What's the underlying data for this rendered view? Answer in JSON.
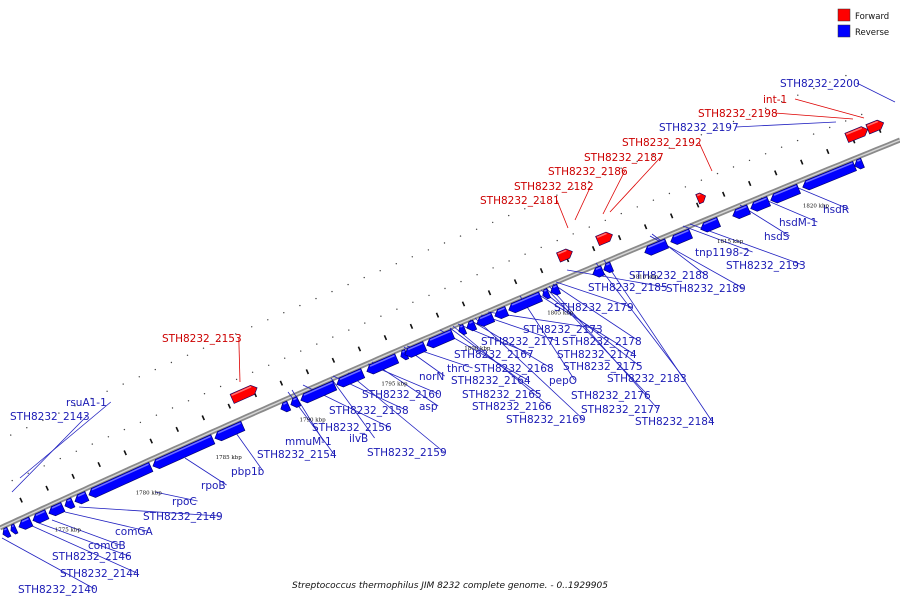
{
  "caption": "Streptococcus thermophilus JIM 8232 complete genome. - 0..1929905",
  "legend": [
    {
      "label": "Forward",
      "color": "#ff0000"
    },
    {
      "label": "Reverse",
      "color": "#0000ff"
    }
  ],
  "colors": {
    "forward": "#ff0000",
    "reverse": "#0000ff",
    "label_forward": "#cc0000",
    "label_reverse": "#1a1ab4",
    "backbone": "#888888"
  },
  "kbp_ticks": [
    "1775 kbp",
    "1780 kbp",
    "1785 kbp",
    "1790 kbp",
    "1795 kbp",
    "1800 kbp",
    "1805 kbp",
    "1810 kbp",
    "1815 kbp",
    "1820 kbp"
  ],
  "genes_forward": [
    "STH8232_2153",
    "STH8232_2181",
    "STH8232_2182",
    "STH8232_2186",
    "STH8232_2187",
    "STH8232_2192",
    "STH8232_2198",
    "int-1"
  ],
  "genes_reverse": [
    "STH8232_2140",
    "STH8232_2143",
    "rsuA1-1",
    "STH8232_2144",
    "STH8232_2146",
    "comGB",
    "comGA",
    "STH8232_2149",
    "rpoC",
    "rpoB",
    "pbp1b",
    "STH8232_2154",
    "mmuM-1",
    "STH8232_2156",
    "ilvB",
    "STH8232_2158",
    "STH8232_2159",
    "STH8232_2160",
    "asp",
    "norN",
    "thrC",
    "STH8232_2164",
    "STH8232_2165",
    "STH8232_2166",
    "STH8232_2167",
    "STH8232_2168",
    "STH8232_2169",
    "STH8232_2171",
    "STH8232_2173",
    "pepO",
    "STH8232_2174",
    "STH8232_2175",
    "STH8232_2176",
    "STH8232_2177",
    "STH8232_2178",
    "STH8232_2179",
    "STH8232_2183",
    "STH8232_2184",
    "STH8232_2185",
    "STH8232_2188",
    "STH8232_2189",
    "tnp1198-2",
    "STH8232_2193",
    "hsdS",
    "hsdM-1",
    "hsdR",
    "STH8232_2197",
    "STH8232_2200"
  ]
}
